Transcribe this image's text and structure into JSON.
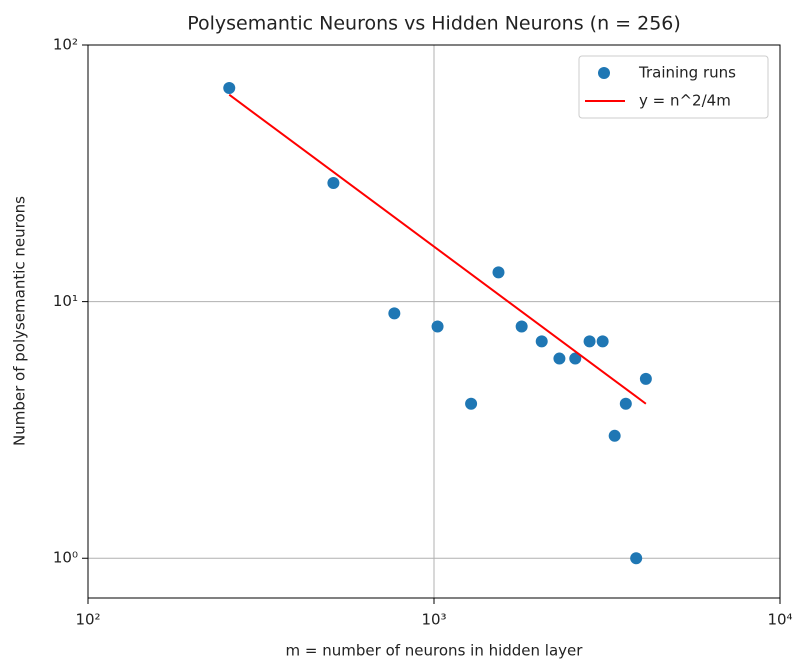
{
  "chart_data": {
    "type": "scatter",
    "title": "Polysemantic Neurons vs Hidden Neurons (n = 256)",
    "xlabel": "m = number of neurons in hidden layer",
    "ylabel": "Number of polysemantic neurons",
    "xscale": "log",
    "yscale": "log",
    "grid": true,
    "legend": "upper right",
    "xlim": [
      100,
      10000
    ],
    "ylim": [
      0.7,
      100
    ],
    "xticks": [
      {
        "value": 100,
        "label": "10²"
      },
      {
        "value": 1000,
        "label": "10³"
      },
      {
        "value": 10000,
        "label": "10⁴"
      }
    ],
    "yticks": [
      {
        "value": 1,
        "label": "10⁰"
      },
      {
        "value": 10,
        "label": "10¹"
      },
      {
        "value": 100,
        "label": "10²"
      }
    ],
    "series": [
      {
        "name": "Training runs",
        "type": "scatter",
        "color": "#1f77b4",
        "x": [
          256,
          512,
          768,
          1024,
          1280,
          1536,
          1792,
          2048,
          2304,
          2560,
          2816,
          3072,
          3328,
          3584,
          3840,
          4096
        ],
        "values": [
          68,
          29,
          9,
          8,
          4,
          13,
          8,
          7,
          6,
          6,
          7,
          7,
          3,
          4,
          1,
          5
        ]
      },
      {
        "name": "y = n^2/4m",
        "type": "line",
        "color": "#ff0000",
        "x": [
          256,
          4096
        ],
        "values": [
          64,
          4
        ]
      }
    ]
  }
}
